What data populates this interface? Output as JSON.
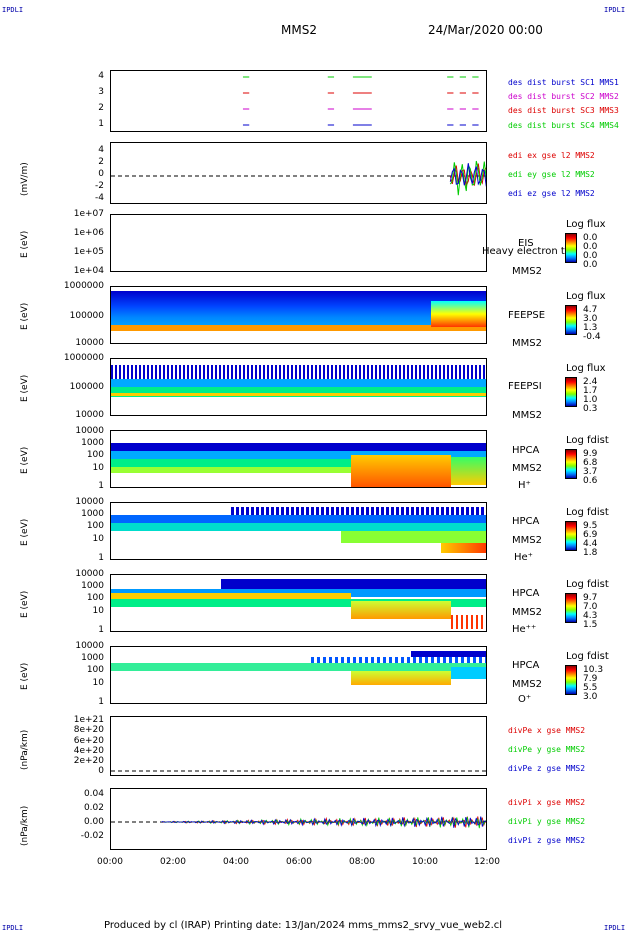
{
  "header": {
    "corner_left": "IPDLI",
    "corner_right": "IPDLI",
    "bottom_left": "IPDLI",
    "bottom_right": "IPDLI",
    "mission": "MMS2",
    "datetime": "24/Mar/2020 00:00"
  },
  "footer": {
    "text": "Produced by cl (IRAP)   Printing date: 13/Jan/2024   mms_mms2_srvy_vue_web2.cl"
  },
  "colors": {
    "red": "#dd0000",
    "green": "#00cc00",
    "blue": "#0000cc",
    "magenta": "#cc00cc"
  },
  "x_ticks": [
    "00:00",
    "02:00",
    "04:00",
    "06:00",
    "08:00",
    "10:00",
    "12:00"
  ],
  "panels": {
    "burst": {
      "ticks": [
        "4",
        "3",
        "2",
        "1"
      ],
      "legend": [
        "des dist burst SC1 MMS1",
        "des dist burst SC2 MMS2",
        "des dist burst SC3 MMS3",
        "des dist burst SC4 MMS4"
      ]
    },
    "edi": {
      "ylabel": "(mV/m)",
      "ticks": [
        "4",
        "2",
        "0",
        "-2",
        "-4"
      ],
      "legend": [
        "edi ex gse l2 MMS2",
        "edi ey gse l2 MMS2",
        "edi ez gse l2 MMS2"
      ]
    },
    "eis": {
      "ylabel": "E (eV)",
      "ticks": [
        "1e+07",
        "1e+06",
        "1e+05",
        "1e+04"
      ],
      "name": "EIS",
      "sc": "MMS2",
      "overlay": "Heavy electron to",
      "cb_title": "Log flux",
      "cb_labels": [
        "0.0",
        "0.0",
        "0.0",
        "0.0"
      ]
    },
    "feepse": {
      "ylabel": "E (eV)",
      "ticks": [
        "1000000",
        "100000",
        "10000"
      ],
      "name": "FEEPSE",
      "sc": "MMS2",
      "cb_title": "Log flux",
      "cb_labels": [
        "4.7",
        "3.0",
        "1.3",
        "-0.4"
      ]
    },
    "feepsi": {
      "ylabel": "E (eV)",
      "ticks": [
        "1000000",
        "100000",
        "10000"
      ],
      "name": "FEEPSI",
      "sc": "MMS2",
      "cb_title": "Log flux",
      "cb_labels": [
        "2.4",
        "1.7",
        "1.0",
        "0.3"
      ]
    },
    "hplus": {
      "ylabel": "E (eV)",
      "ticks": [
        "10000",
        "1000",
        "100",
        "10",
        "1"
      ],
      "name": "HPCA",
      "sc": "MMS2",
      "species": "H⁺",
      "cb_title": "Log fdist",
      "cb_labels": [
        "9.9",
        "6.8",
        "3.7",
        "0.6"
      ]
    },
    "heplus": {
      "ylabel": "E (eV)",
      "ticks": [
        "10000",
        "1000",
        "100",
        "10",
        "1"
      ],
      "name": "HPCA",
      "sc": "MMS2",
      "species": "He⁺",
      "cb_title": "Log fdist",
      "cb_labels": [
        "9.5",
        "6.9",
        "4.4",
        "1.8"
      ]
    },
    "hepp": {
      "ylabel": "E (eV)",
      "ticks": [
        "10000",
        "1000",
        "100",
        "10",
        "1"
      ],
      "name": "HPCA",
      "sc": "MMS2",
      "species": "He⁺⁺",
      "cb_title": "Log fdist",
      "cb_labels": [
        "9.7",
        "7.0",
        "4.3",
        "1.5"
      ]
    },
    "oplus": {
      "ylabel": "E (eV)",
      "ticks": [
        "10000",
        "1000",
        "100",
        "10",
        "1"
      ],
      "name": "HPCA",
      "sc": "MMS2",
      "species": "O⁺",
      "cb_title": "Log fdist",
      "cb_labels": [
        "10.3",
        "7.9",
        "5.5",
        "3.0"
      ]
    },
    "divpe": {
      "ylabel": "(nPa/km)",
      "ticks": [
        "1e+21",
        "8e+20",
        "6e+20",
        "4e+20",
        "2e+20",
        "0"
      ],
      "legend": [
        "divPe x gse MMS2",
        "divPe y gse MMS2",
        "divPe z gse MMS2"
      ]
    },
    "divpi": {
      "ylabel": "(nPa/km)",
      "ticks": [
        "0.04",
        "0.02",
        "0.00",
        "-0.02"
      ],
      "legend": [
        "divPi x gse MMS2",
        "divPi y gse MMS2",
        "divPi z gse MMS2"
      ]
    }
  },
  "chart_data": {
    "type": "line",
    "title": "MMS2 24/Mar/2020 00:00",
    "x_range_hours": [
      0,
      12
    ],
    "burst_intervals_hours": [
      [
        4.2,
        4.4
      ],
      [
        6.9,
        7.1
      ],
      [
        7.7,
        8.3
      ],
      [
        10.7,
        10.9
      ],
      [
        11.1,
        11.3
      ],
      [
        11.5,
        11.7
      ]
    ],
    "edi_active_hours": [
      10.8,
      12
    ],
    "divpi_active_hours": [
      1.6,
      12
    ]
  }
}
